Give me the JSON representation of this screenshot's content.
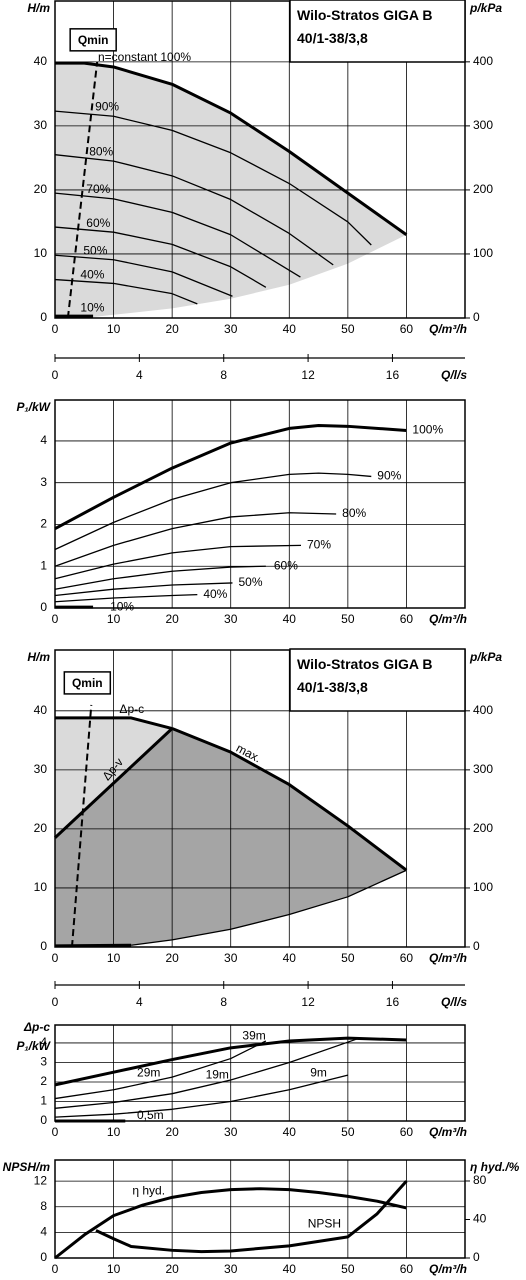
{
  "chart_data": [
    {
      "type": "line",
      "title": "Wilo-Stratos GIGA B",
      "subtitle": "40/1-38/3,8",
      "ylabel": "H/m",
      "y2label": "p/kPa",
      "xlabel": "Q/m³/h",
      "xlim": [
        0,
        70
      ],
      "xticks": [
        0,
        10,
        20,
        30,
        40,
        50,
        60
      ],
      "ylim": [
        0,
        49.5
      ],
      "yticks": [
        0,
        10,
        20,
        30,
        40
      ],
      "y2lim": [
        0,
        495
      ],
      "y2ticks": [
        0,
        100,
        200,
        300,
        400
      ],
      "grid": true,
      "areas": [
        {
          "color": "#dadada",
          "x": [
            0,
            5,
            10,
            20,
            30,
            40,
            50,
            60,
            50,
            40,
            30,
            20,
            10,
            5,
            0
          ],
          "values": [
            39.8,
            39.8,
            39.2,
            36.5,
            32,
            26,
            19.5,
            13,
            8.5,
            5.2,
            3,
            1.5,
            0.5,
            0,
            0
          ]
        }
      ],
      "series": [
        {
          "name": "n=constant 100%",
          "style": "thick",
          "color": "#000000",
          "x": [
            0,
            5,
            10,
            20,
            30,
            40,
            50,
            60
          ],
          "values": [
            39.8,
            39.8,
            39.2,
            36.5,
            32,
            26,
            19.5,
            13
          ]
        },
        {
          "name": "90%",
          "style": "thin",
          "color": "#000000",
          "x": [
            0,
            10,
            20,
            30,
            40,
            50,
            54
          ],
          "values": [
            32.3,
            31.5,
            29.3,
            25.8,
            21,
            15,
            11.4
          ]
        },
        {
          "name": "80%",
          "style": "thin",
          "color": "#000000",
          "x": [
            0,
            10,
            20,
            30,
            40,
            47.5
          ],
          "values": [
            25.5,
            24.5,
            22.2,
            18.5,
            13.2,
            8.3
          ]
        },
        {
          "name": "70%",
          "style": "thin",
          "color": "#000000",
          "x": [
            0,
            10,
            20,
            30,
            41.9
          ],
          "values": [
            19.5,
            18.6,
            16.5,
            13,
            6.4
          ]
        },
        {
          "name": "60%",
          "style": "thin",
          "color": "#000000",
          "x": [
            0,
            10,
            20,
            30,
            36
          ],
          "values": [
            14.2,
            13.4,
            11.5,
            8,
            4.8
          ]
        },
        {
          "name": "50%",
          "style": "thin",
          "color": "#000000",
          "x": [
            0,
            10,
            20,
            30.3
          ],
          "values": [
            9.8,
            9.1,
            7.2,
            3.4
          ]
        },
        {
          "name": "40%",
          "style": "thin",
          "color": "#000000",
          "x": [
            0,
            10,
            20,
            24.3
          ],
          "values": [
            6,
            5.4,
            3.8,
            2.2
          ]
        },
        {
          "name": "10%",
          "style": "thick",
          "color": "#000000",
          "x": [
            0,
            6.5
          ],
          "values": [
            0.3,
            0.3
          ]
        },
        {
          "name": "Qmin",
          "style": "dashed",
          "color": "#000000",
          "x": [
            2.2,
            7.2
          ],
          "values": [
            0,
            40
          ]
        }
      ]
    },
    {
      "type": "axis",
      "xlabel": "Q/l/s",
      "xlim": [
        0,
        19.44
      ],
      "xticks": [
        0,
        4,
        8,
        12,
        16
      ]
    },
    {
      "type": "line",
      "ylabel": "P₁/kW",
      "xlabel": "Q/m³/h",
      "xlim": [
        0,
        70
      ],
      "xticks": [
        0,
        10,
        20,
        30,
        40,
        50,
        60
      ],
      "ylim": [
        0,
        4.98
      ],
      "yticks": [
        0,
        1,
        2,
        3,
        4
      ],
      "grid": true,
      "series": [
        {
          "name": "100%",
          "style": "thick",
          "color": "#000000",
          "x": [
            0,
            10,
            20,
            30,
            40,
            45,
            50,
            60
          ],
          "values": [
            1.9,
            2.65,
            3.35,
            3.95,
            4.3,
            4.37,
            4.35,
            4.25
          ]
        },
        {
          "name": "90%",
          "style": "thin",
          "color": "#000000",
          "x": [
            0,
            10,
            20,
            30,
            40,
            45,
            50,
            54
          ],
          "values": [
            1.4,
            2.05,
            2.6,
            3.0,
            3.2,
            3.23,
            3.2,
            3.15
          ]
        },
        {
          "name": "80%",
          "style": "thin",
          "color": "#000000",
          "x": [
            0,
            10,
            20,
            30,
            40,
            48
          ],
          "values": [
            1.0,
            1.5,
            1.9,
            2.18,
            2.28,
            2.25
          ]
        },
        {
          "name": "70%",
          "style": "thin",
          "color": "#000000",
          "x": [
            0,
            10,
            20,
            30,
            42
          ],
          "values": [
            0.7,
            1.05,
            1.32,
            1.47,
            1.5
          ]
        },
        {
          "name": "60%",
          "style": "thin",
          "color": "#000000",
          "x": [
            0,
            10,
            20,
            30,
            36
          ],
          "values": [
            0.45,
            0.7,
            0.88,
            0.98,
            1.0
          ]
        },
        {
          "name": "50%",
          "style": "thin",
          "color": "#000000",
          "x": [
            0,
            10,
            20,
            30.3
          ],
          "values": [
            0.3,
            0.45,
            0.55,
            0.6
          ]
        },
        {
          "name": "40%",
          "style": "thin",
          "color": "#000000",
          "x": [
            0,
            10,
            20,
            24.3
          ],
          "values": [
            0.15,
            0.24,
            0.3,
            0.32
          ]
        },
        {
          "name": "10%",
          "style": "thick",
          "color": "#000000",
          "x": [
            0,
            6.5
          ],
          "values": [
            0.02,
            0.02
          ]
        }
      ]
    },
    {
      "type": "line",
      "title": "Wilo-Stratos GIGA B",
      "subtitle": "40/1-38/3,8",
      "ylabel": "H/m",
      "y2label": "p/kPa",
      "xlabel": "Q/m³/h",
      "xlim": [
        0,
        70
      ],
      "xticks": [
        0,
        10,
        20,
        30,
        40,
        50,
        60
      ],
      "ylim": [
        0,
        50.3
      ],
      "yticks": [
        0,
        10,
        20,
        30,
        40
      ],
      "y2lim": [
        0,
        503
      ],
      "y2ticks": [
        0,
        100,
        200,
        300,
        400
      ],
      "grid": true,
      "areas": [
        {
          "color": "#dadada",
          "x": [
            0,
            13,
            20,
            0
          ],
          "values": [
            38.8,
            38.8,
            37,
            18.5
          ]
        },
        {
          "color": "#a5a5a5",
          "x": [
            0,
            20,
            30,
            40,
            50,
            60,
            50,
            40,
            30,
            20,
            13,
            3,
            0
          ],
          "values": [
            18.5,
            37,
            33,
            27.5,
            20.5,
            13,
            8.5,
            5.5,
            3,
            1.2,
            0.3,
            0,
            0
          ]
        }
      ],
      "series": [
        {
          "name": "Δp-c",
          "style": "thick",
          "color": "#000000",
          "x": [
            0,
            13,
            20
          ],
          "values": [
            38.8,
            38.8,
            37
          ]
        },
        {
          "name": "Δp-v",
          "style": "thick",
          "color": "#000000",
          "x": [
            0,
            20
          ],
          "values": [
            18.5,
            37
          ]
        },
        {
          "name": "max.",
          "style": "thick",
          "color": "#000000",
          "x": [
            20,
            30,
            40,
            50,
            60
          ],
          "values": [
            37,
            33,
            27.5,
            20.5,
            13
          ]
        },
        {
          "style": "thick",
          "color": "#000000",
          "x": [
            0,
            13
          ],
          "values": [
            0.2,
            0.3
          ]
        },
        {
          "style": "thin",
          "color": "#000000",
          "x": [
            13,
            20,
            30,
            40,
            50,
            60
          ],
          "values": [
            0.3,
            1.2,
            3,
            5.5,
            8.5,
            13
          ]
        },
        {
          "name": "Qmin",
          "style": "dashed",
          "color": "#000000",
          "x": [
            2.9,
            6.2
          ],
          "values": [
            0,
            41
          ]
        }
      ]
    },
    {
      "type": "axis",
      "xlabel": "Q/l/s",
      "xlim": [
        0,
        19.44
      ],
      "xticks": [
        0,
        4,
        8,
        12,
        16
      ]
    },
    {
      "type": "line",
      "ylabel": [
        "Δp-c",
        "P₁/kW"
      ],
      "xlabel": "Q/m³/h",
      "xlim": [
        0,
        70
      ],
      "xticks": [
        0,
        10,
        20,
        30,
        40,
        50,
        60
      ],
      "ylim": [
        0,
        4.92
      ],
      "yticks": [
        0,
        1,
        2,
        3,
        4
      ],
      "grid": true,
      "series": [
        {
          "name": "39m",
          "style": "thick",
          "color": "#000000",
          "x": [
            0,
            10,
            20,
            30,
            40,
            50,
            60
          ],
          "values": [
            1.85,
            2.5,
            3.15,
            3.75,
            4.1,
            4.25,
            4.15
          ]
        },
        {
          "name": "29m",
          "style": "thin",
          "color": "#000000",
          "x": [
            0,
            10,
            20,
            30,
            36
          ],
          "values": [
            1.15,
            1.6,
            2.25,
            3.2,
            4.1
          ]
        },
        {
          "name": "19m",
          "style": "thin",
          "color": "#000000",
          "x": [
            0,
            10,
            20,
            30,
            40,
            52
          ],
          "values": [
            0.65,
            0.95,
            1.4,
            2.1,
            3.0,
            4.25
          ]
        },
        {
          "name": "9m",
          "style": "thin",
          "color": "#000000",
          "x": [
            0,
            10,
            20,
            30,
            40,
            50
          ],
          "values": [
            0.2,
            0.35,
            0.6,
            1.0,
            1.6,
            2.35
          ]
        },
        {
          "name": "0,5m",
          "style": "thick",
          "color": "#000000",
          "x": [
            0,
            12
          ],
          "values": [
            0,
            0
          ]
        }
      ]
    },
    {
      "type": "line",
      "ylabel": "NPSH/m",
      "y2label": "η hyd./%",
      "xlabel": "Q/m³/h",
      "xlim": [
        0,
        70
      ],
      "xticks": [
        0,
        10,
        20,
        30,
        40,
        50,
        60
      ],
      "ylim": [
        0,
        15.3
      ],
      "yticks": [
        0,
        4,
        8,
        12
      ],
      "y2lim": [
        0,
        101.8
      ],
      "y2ticks": [
        0,
        40,
        80
      ],
      "grid": true,
      "series": [
        {
          "name": "NPSH",
          "style": "thick",
          "color": "#000000",
          "x": [
            7,
            10,
            13,
            20,
            25,
            30,
            40,
            50,
            55,
            60
          ],
          "values": [
            4.3,
            3.0,
            1.8,
            1.2,
            1.0,
            1.1,
            1.9,
            3.3,
            6.9,
            12
          ]
        },
        {
          "name": "η hyd.",
          "axis": "y2",
          "style": "thick",
          "color": "#000000",
          "x": [
            0,
            5,
            10,
            15,
            20,
            25,
            30,
            35,
            40,
            45,
            50,
            55,
            60
          ],
          "values": [
            0,
            24,
            44,
            55,
            63,
            68,
            71,
            72,
            71,
            68,
            64,
            59,
            52
          ]
        }
      ]
    }
  ]
}
